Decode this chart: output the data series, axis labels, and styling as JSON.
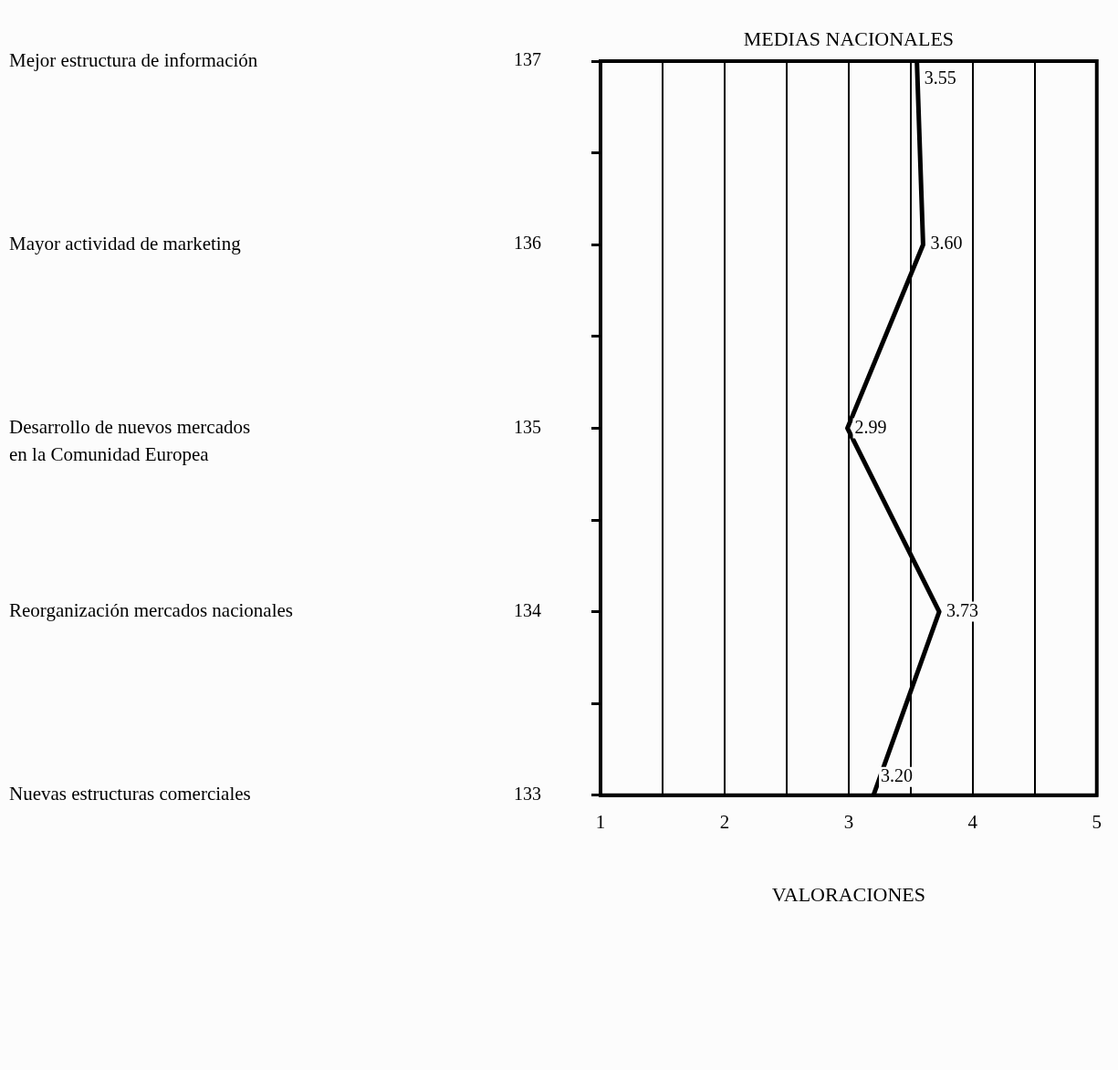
{
  "chart_data": {
    "type": "line",
    "title": "MEDIAS NACIONALES",
    "xlabel": "VALORACIONES",
    "series": [
      {
        "color": "#000000",
        "x": [
          3.55,
          3.6,
          2.99,
          3.73,
          3.2
        ],
        "values": [
          137,
          136,
          135,
          134,
          133
        ]
      }
    ],
    "xlim": [
      1,
      5
    ],
    "xticks": [
      1,
      {
        "value": 1.5,
        "label": null
      },
      2,
      {
        "value": 2.5,
        "label": null
      },
      3,
      {
        "value": 3.5,
        "label": null
      },
      4,
      {
        "value": 4.5,
        "label": null
      },
      5
    ],
    "ylim": [
      133,
      137
    ],
    "yticks": [
      133,
      {
        "value": 133.5,
        "label": null
      },
      134,
      {
        "value": 134.5,
        "label": null
      },
      135,
      {
        "value": 135.5,
        "label": null
      },
      136,
      {
        "value": 136.5,
        "label": null
      },
      137
    ],
    "grid": "x",
    "legend": false,
    "marker": "none",
    "line_style": "solid",
    "annotations": [
      {
        "text": "3.55",
        "x": 3.55,
        "y": 137
      },
      {
        "text": "3.60",
        "x": 3.6,
        "y": 136
      },
      {
        "text": "2.99",
        "x": 2.99,
        "y": 135
      },
      {
        "text": "3.73",
        "x": 3.73,
        "y": 134
      },
      {
        "text": "3.20",
        "x": 3.2,
        "y": 133
      },
      "Mejor estructura de información",
      "Mayor actividad de marketing",
      "Desarrollo de nuevos mercados\nen la Comunidad Europea",
      "Reorganización mercados nacionales",
      "Nuevas estructuras comerciales"
    ]
  }
}
